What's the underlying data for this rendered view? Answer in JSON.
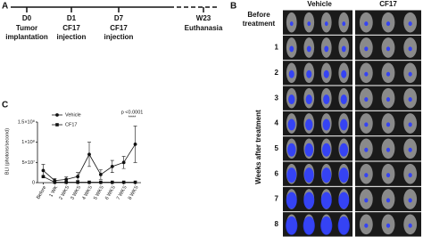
{
  "panel_a": {
    "letter": "A",
    "events": [
      {
        "day": "D0",
        "lines": [
          "Tumor",
          "implantation"
        ]
      },
      {
        "day": "D1",
        "lines": [
          "CF17",
          "injection"
        ]
      },
      {
        "day": "D7",
        "lines": [
          "CF17",
          "injection"
        ]
      },
      {
        "day": "W23",
        "lines": [
          "Euthanasia"
        ]
      }
    ]
  },
  "panel_b": {
    "letter": "B",
    "columns": [
      "Vehicle",
      "CF17"
    ],
    "rows": [
      [
        "Before",
        "treatment"
      ],
      "1",
      "2",
      "3",
      "4",
      "5",
      "6",
      "7",
      "8"
    ],
    "axis_label": "Weeks after treatment"
  },
  "chart_data": {
    "type": "line",
    "letter": "C",
    "ylabel": "BLI (photons/second)",
    "categories": [
      "Before",
      "1 WK",
      "2 WKS",
      "3 WKS",
      "4 WKS",
      "5 WKS",
      "6 WKS",
      "7 WKS",
      "8 WKS"
    ],
    "series": [
      {
        "name": "Vehicle",
        "color": "#111111",
        "marker": "circle",
        "values": [
          30000000,
          5000000,
          8000000,
          15000000,
          70000000,
          20000000,
          40000000,
          50000000,
          95000000
        ],
        "errors": [
          15000000,
          5000000,
          6000000,
          10000000,
          30000000,
          12000000,
          15000000,
          15000000,
          45000000
        ]
      },
      {
        "name": "CF17",
        "color": "#111111",
        "marker": "square",
        "values": [
          15000000,
          1000000,
          1000000,
          1000000,
          1000000,
          1000000,
          1000000,
          1000000,
          1000000
        ]
      }
    ],
    "ylim": [
      0,
      150000000
    ],
    "yticks": [
      0,
      {
        "value": 50000000,
        "label": "5×10⁷"
      },
      {
        "value": 100000000,
        "label": "1×10⁸"
      },
      {
        "value": 150000000,
        "label": "1.5×10⁸"
      }
    ],
    "annotations": [
      "p <0.0001",
      "****"
    ]
  }
}
